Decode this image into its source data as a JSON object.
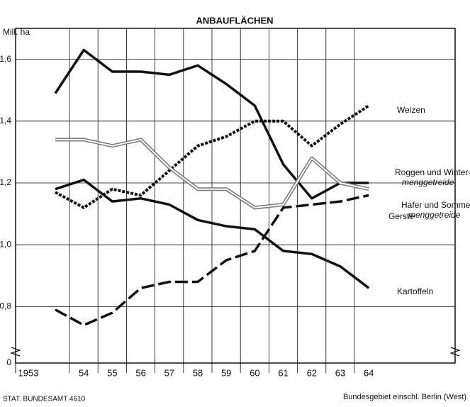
{
  "chart_data": {
    "type": "line",
    "title": "ANBAUFLÄCHEN",
    "y_label": "Mill. ha",
    "source": "STAT. BUNDESAMT 4610",
    "note": "Bundesgebiet einschl. Berlin (West)",
    "categories": [
      "1953",
      "54",
      "55",
      "56",
      "57",
      "58",
      "59",
      "60",
      "61",
      "62",
      "63",
      "64"
    ],
    "ylim": [
      0,
      1.7
    ],
    "axis_break": true,
    "grid": true,
    "yticks": [
      {
        "value": 0,
        "label": "0"
      },
      {
        "value": 0.8,
        "label": "0,8"
      },
      {
        "value": 1.0,
        "label": "1,0"
      },
      {
        "value": 1.2,
        "label": "1,2"
      },
      {
        "value": 1.4,
        "label": "1,4"
      },
      {
        "value": 1.6,
        "label": "1,6"
      }
    ],
    "series": [
      {
        "label": [
          "Roggen und Winter-",
          "menggetreide"
        ],
        "color": "#111111",
        "style": "solid",
        "values": [
          1.49,
          1.63,
          1.56,
          1.56,
          1.55,
          1.58,
          1.52,
          1.45,
          1.26,
          1.15,
          1.2,
          1.2
        ]
      },
      {
        "label": [
          "Weizen"
        ],
        "color": "#111111",
        "style": "dotted",
        "values": [
          1.17,
          1.12,
          1.18,
          1.16,
          1.24,
          1.32,
          1.35,
          1.4,
          1.4,
          1.32,
          1.39,
          1.45
        ]
      },
      {
        "label": [
          "Hafer und Sommer-",
          "menggetreide"
        ],
        "color": "#777777",
        "style": "double",
        "values": [
          1.34,
          1.34,
          1.32,
          1.34,
          1.25,
          1.18,
          1.18,
          1.12,
          1.13,
          1.28,
          1.2,
          1.18
        ]
      },
      {
        "label": [
          "Kartoffeln"
        ],
        "color": "#111111",
        "style": "solid",
        "values": [
          1.18,
          1.21,
          1.14,
          1.15,
          1.13,
          1.08,
          1.06,
          1.05,
          0.98,
          0.97,
          0.93,
          0.86
        ]
      },
      {
        "label": [
          "Gerste"
        ],
        "color": "#111111",
        "style": "longdash",
        "values": [
          0.79,
          0.74,
          0.78,
          0.86,
          0.88,
          0.88,
          0.95,
          0.98,
          1.12,
          1.13,
          1.14,
          1.16
        ]
      }
    ]
  }
}
